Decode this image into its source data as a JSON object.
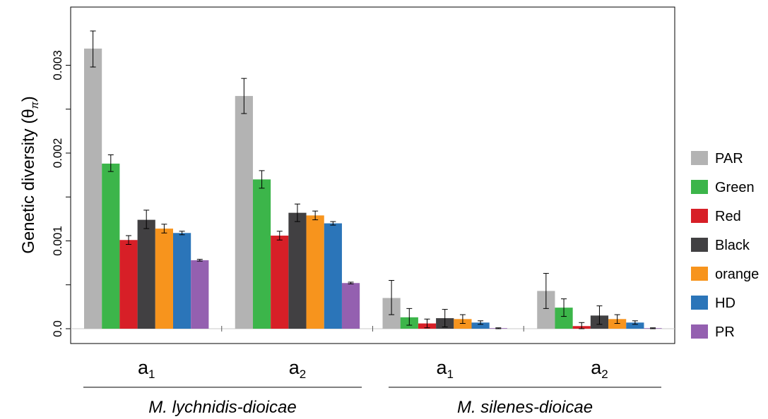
{
  "chart_data": {
    "type": "bar",
    "ylabel": {
      "main": "Genetic diversity (θ",
      "sub": "π",
      "close": ")"
    },
    "ylim": [
      0,
      0.0035
    ],
    "yticks": [
      {
        "value": 0,
        "label": "0.0"
      },
      {
        "value": 0.0005,
        "label": ""
      },
      {
        "value": 0.001,
        "label": "0.001"
      },
      {
        "value": 0.0015,
        "label": ""
      },
      {
        "value": 0.002,
        "label": "0.002"
      },
      {
        "value": 0.0025,
        "label": ""
      },
      {
        "value": 0.003,
        "label": "0.003"
      }
    ],
    "grid": false,
    "legend_position": "right",
    "categories": [
      {
        "base": "a",
        "sub": "1"
      },
      {
        "base": "a",
        "sub": "2"
      },
      {
        "base": "a",
        "sub": "1"
      },
      {
        "base": "a",
        "sub": "2"
      }
    ],
    "groups": [
      {
        "label": "M. lychnidis-dioicae",
        "categories": [
          0,
          1
        ]
      },
      {
        "label": "M. silenes-dioicae",
        "categories": [
          2,
          3
        ]
      }
    ],
    "series": [
      {
        "name": "PAR",
        "color": "#b3b3b3",
        "values": [
          0.00319,
          0.00265,
          0.00035,
          0.00043
        ],
        "err_low": [
          0.00298,
          0.00245,
          0.00016,
          0.00023
        ],
        "err_high": [
          0.00339,
          0.00285,
          0.00055,
          0.00063
        ]
      },
      {
        "name": "Green",
        "color": "#3cb54a",
        "values": [
          0.00188,
          0.0017,
          0.00013,
          0.00024
        ],
        "err_low": [
          0.00179,
          0.0016,
          4e-05,
          0.00014
        ],
        "err_high": [
          0.00198,
          0.0018,
          0.00023,
          0.00034
        ]
      },
      {
        "name": "Red",
        "color": "#d71f27",
        "values": [
          0.00101,
          0.00106,
          6e-05,
          3e-05
        ],
        "err_low": [
          0.00096,
          0.00101,
          1e-05,
          0.0
        ],
        "err_high": [
          0.00106,
          0.00111,
          0.00011,
          7e-05
        ]
      },
      {
        "name": "Black",
        "color": "#414042",
        "values": [
          0.00124,
          0.00132,
          0.00012,
          0.00015
        ],
        "err_low": [
          0.00114,
          0.00122,
          2e-05,
          5e-05
        ],
        "err_high": [
          0.00135,
          0.00142,
          0.00022,
          0.00026
        ]
      },
      {
        "name": "orange",
        "color": "#f7941d",
        "values": [
          0.00114,
          0.00129,
          0.00011,
          0.00011
        ],
        "err_low": [
          0.00109,
          0.00124,
          6e-05,
          6e-05
        ],
        "err_high": [
          0.00119,
          0.00134,
          0.00016,
          0.00016
        ]
      },
      {
        "name": "HD",
        "color": "#2b75b9",
        "values": [
          0.00109,
          0.0012,
          7e-05,
          7e-05
        ],
        "err_low": [
          0.00107,
          0.00118,
          5e-05,
          5e-05
        ],
        "err_high": [
          0.00111,
          0.00122,
          9e-05,
          9e-05
        ]
      },
      {
        "name": "PR",
        "color": "#9460b0",
        "values": [
          0.00078,
          0.00052,
          0.0,
          0.0
        ],
        "err_low": [
          0.00077,
          0.00051,
          0.0,
          0.0
        ],
        "err_high": [
          0.00079,
          0.00053,
          1e-05,
          1e-05
        ]
      }
    ]
  }
}
